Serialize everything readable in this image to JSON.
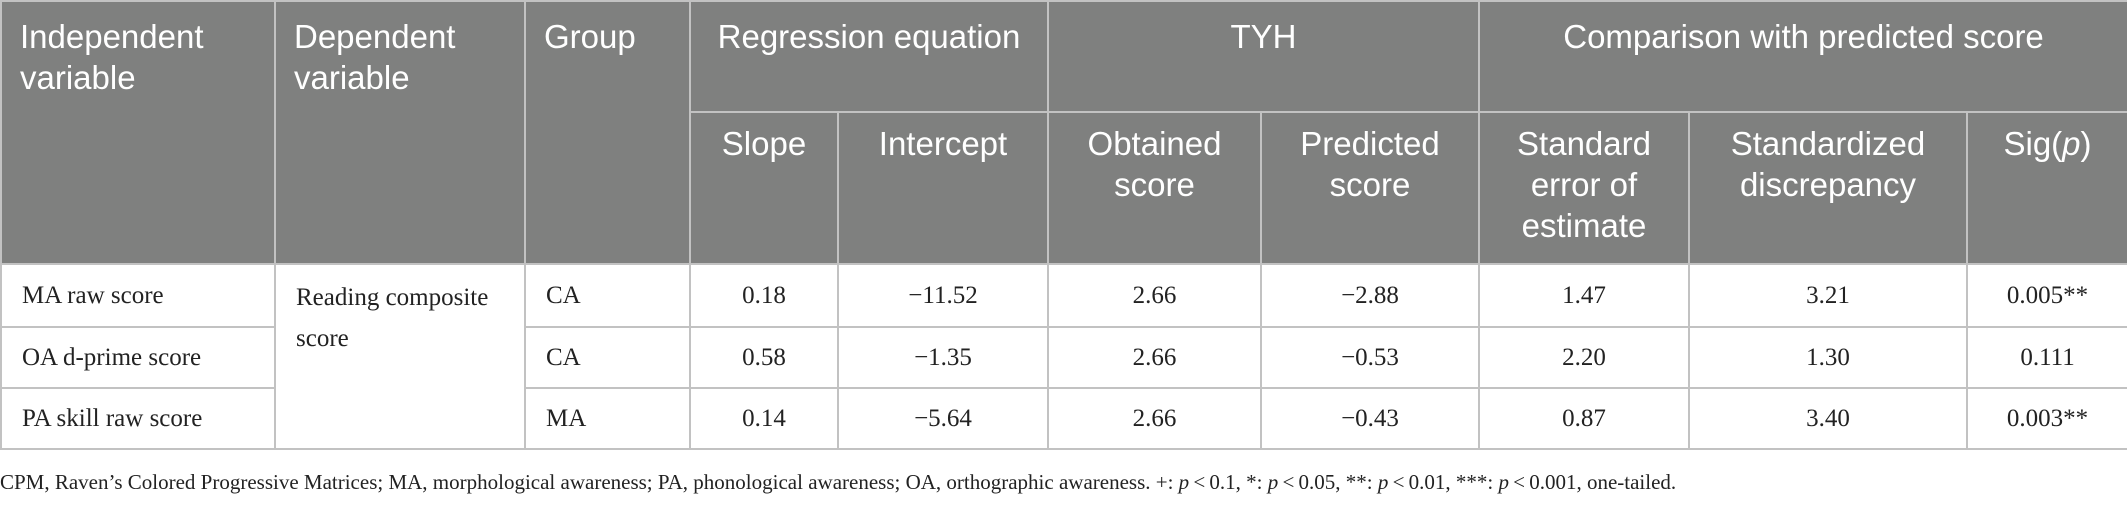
{
  "header": {
    "independent_variable": "Independent variable",
    "dependent_variable": "Dependent variable",
    "group": "Group",
    "regression_equation": "Regression equation",
    "tyh": "TYH",
    "comparison": "Comparison with predicted score",
    "slope": "Slope",
    "intercept": "Intercept",
    "obtained_score": "Obtained score",
    "predicted_score": "Predicted score",
    "standard_error": "Standard error of estimate",
    "standardized_discrepancy": "Standardized discrepancy",
    "sig_prefix": "Sig(",
    "sig_p": "p",
    "sig_suffix": ")"
  },
  "dependent_variable_value": "Reading composite score",
  "rows": [
    {
      "independent": "MA raw score",
      "group": "CA",
      "slope": "0.18",
      "intercept": "−11.52",
      "obtained": "2.66",
      "predicted": "−2.88",
      "se": "1.47",
      "discrepancy": "3.21",
      "sig": "0.005**"
    },
    {
      "independent": "OA d-prime score",
      "group": "CA",
      "slope": "0.58",
      "intercept": "−1.35",
      "obtained": "2.66",
      "predicted": "−0.53",
      "se": "2.20",
      "discrepancy": "1.30",
      "sig": "0.111"
    },
    {
      "independent": "PA skill raw score",
      "group": "MA",
      "slope": "0.14",
      "intercept": "−5.64",
      "obtained": "2.66",
      "predicted": "−0.43",
      "se": "0.87",
      "discrepancy": "3.40",
      "sig": "0.003**"
    }
  ],
  "footnote": {
    "part1": "CPM, Raven’s Colored Progressive Matrices; MA, morphological awareness; PA, phonological awareness; OA, orthographic awareness. +: ",
    "p1": "p",
    "part2": " < 0.1, *: ",
    "p2": "p",
    "part3": " < 0.05, **: ",
    "p3": "p",
    "part4": " < 0.01, ***: ",
    "p4": "p",
    "part5": " < 0.001, one-tailed."
  }
}
